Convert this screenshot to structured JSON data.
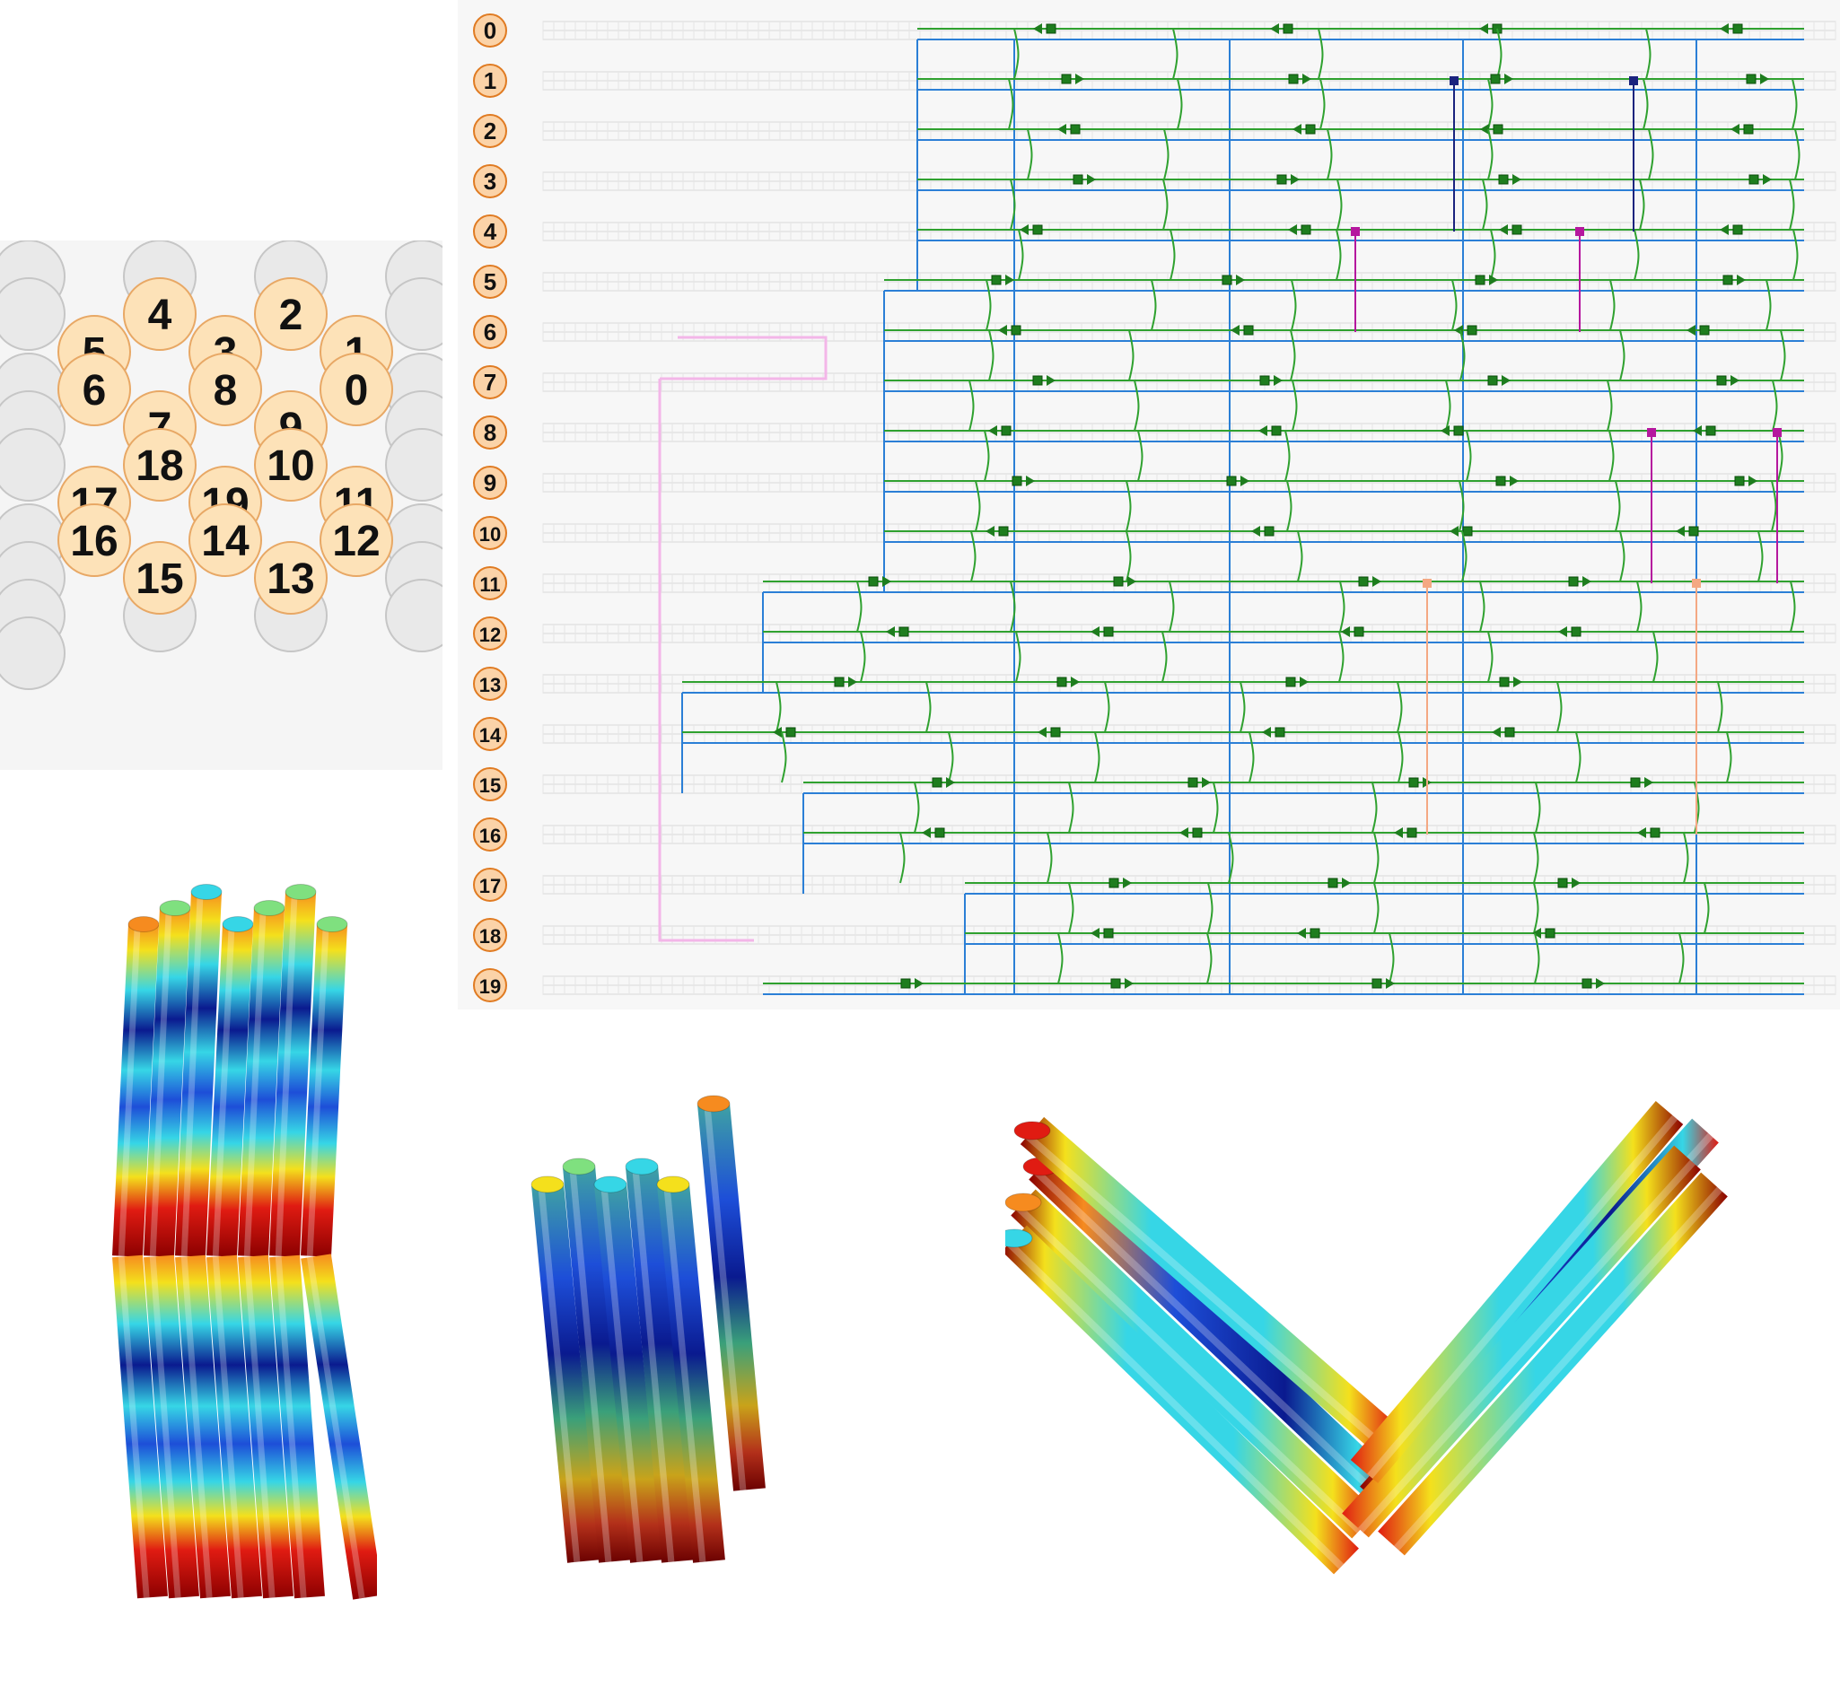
{
  "cross_section": {
    "helices": [
      {
        "id": "4",
        "row": 0,
        "col": 1
      },
      {
        "id": "2",
        "row": 0,
        "col": 3
      },
      {
        "id": "5",
        "row": 1,
        "col": 0
      },
      {
        "id": "3",
        "row": 1,
        "col": 2
      },
      {
        "id": "1",
        "row": 1,
        "col": 4
      },
      {
        "id": "6",
        "row": 2,
        "col": 0
      },
      {
        "id": "8",
        "row": 2,
        "col": 2
      },
      {
        "id": "0",
        "row": 2,
        "col": 4
      },
      {
        "id": "7",
        "row": 3,
        "col": 1
      },
      {
        "id": "9",
        "row": 3,
        "col": 3
      },
      {
        "id": "18",
        "row": 4,
        "col": 1
      },
      {
        "id": "10",
        "row": 4,
        "col": 3
      },
      {
        "id": "17",
        "row": 5,
        "col": 0
      },
      {
        "id": "19",
        "row": 5,
        "col": 2
      },
      {
        "id": "11",
        "row": 5,
        "col": 4
      },
      {
        "id": "16",
        "row": 6,
        "col": 0
      },
      {
        "id": "14",
        "row": 6,
        "col": 2
      },
      {
        "id": "12",
        "row": 6,
        "col": 4
      },
      {
        "id": "15",
        "row": 7,
        "col": 1
      },
      {
        "id": "13",
        "row": 7,
        "col": 3
      }
    ],
    "colors": {
      "helix_fill": "#fde2b8",
      "helix_stroke": "#e8a865",
      "empty_fill": "#e9e9e9",
      "empty_stroke": "#c6c6c6",
      "background": "#f5f5f5"
    }
  },
  "path_view": {
    "row_labels": [
      "0",
      "1",
      "2",
      "3",
      "4",
      "5",
      "6",
      "7",
      "8",
      "9",
      "10",
      "11",
      "12",
      "13",
      "14",
      "15",
      "16",
      "17",
      "18",
      "19"
    ],
    "colors": {
      "scaffold": "#2b7fd6",
      "staple": "#2fa12f",
      "staple_dark": "#1e7d1e",
      "navy": "#1a237e",
      "magenta": "#b5179e",
      "pink": "#f3b6e8",
      "salmon": "#f4a883",
      "label_fill": "#fbd3a8",
      "label_stroke": "#e07b22",
      "grid": "#d9d9d9",
      "background": "#f7f7f7"
    }
  },
  "renders": {
    "colors": {
      "dark_red": "#8b0000",
      "red": "#e01b12",
      "orange": "#f68b1f",
      "yellow": "#f4e01c",
      "cyan": "#36d6e6",
      "blue": "#1d4ed8",
      "navy": "#0a1a8f",
      "green": "#7fe07f"
    }
  }
}
